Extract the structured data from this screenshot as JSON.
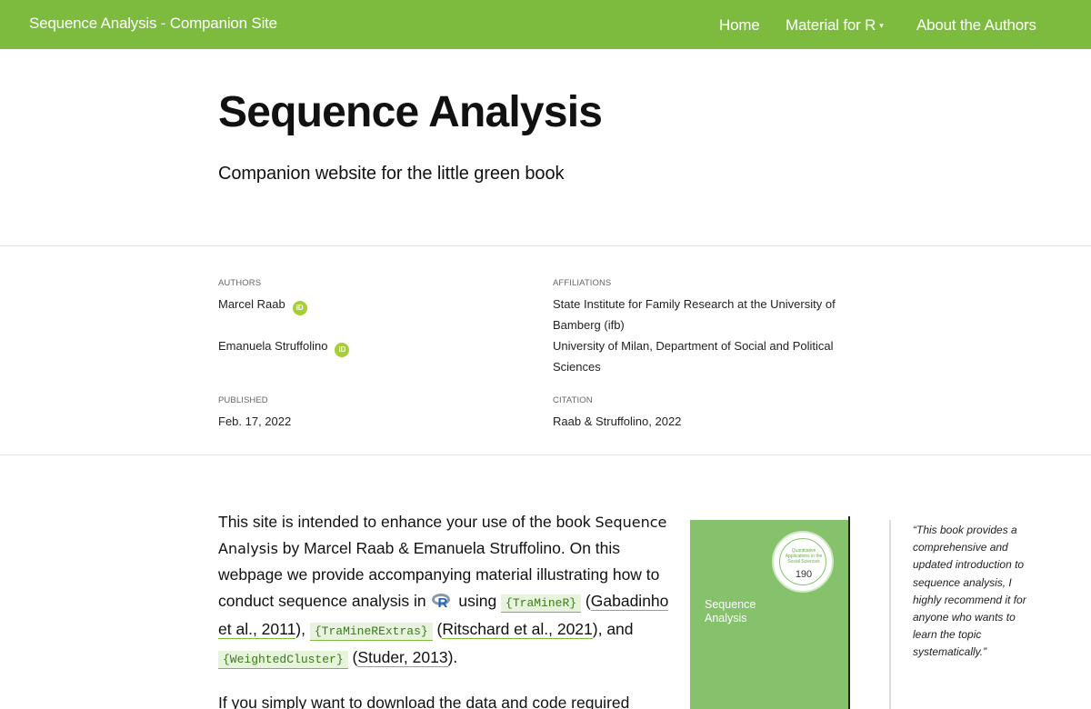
{
  "nav": {
    "brand": "Sequence Analysis - Companion Site",
    "links": [
      {
        "label": "Home"
      },
      {
        "label": "Material for R",
        "caret": "▾"
      },
      {
        "label": "About the Authors"
      }
    ]
  },
  "header": {
    "title": "Sequence Analysis",
    "subtitle": "Companion website for the little green book"
  },
  "meta": {
    "authors_label": "AUTHORS",
    "authors": [
      {
        "name": "Marcel Raab",
        "orcid": "iD"
      },
      {
        "name": "Emanuela Struffolino",
        "orcid": "iD"
      }
    ],
    "affiliations_label": "AFFILIATIONS",
    "affiliations": [
      "State Institute for Family Research at the University of Bamberg (ifb)",
      "University of Milan, Department of Social and Political Sciences"
    ],
    "published_label": "PUBLISHED",
    "published": "Feb. 17, 2022",
    "citation_label": "CITATION",
    "citation": "Raab & Struffolino, 2022"
  },
  "body": {
    "p1_a": "This site is intended to enhance your use of the book ",
    "p1_book": "Sequence Analysis",
    "p1_b": " by Marcel Raab & Emanuela Struffolino. On this webpage we provide accompanying material illustrating how to conduct sequence analysis in ",
    "r_letter": "R",
    "p1_c": " using ",
    "pkg1": "{TraMineR}",
    "cite1": "Gabadinho et al., 2011",
    "pkg2": "{TraMineRExtras}",
    "cite2": "Ritschard et al., 2021",
    "p1_and": "), and ",
    "pkg3": "{WeightedCluster}",
    "cite3": "Studer, 2013",
    "p2": "If you simply want to download the data and code required"
  },
  "cover": {
    "badge_text": "Quantitative Applications in the Social Sciences",
    "badge_number": "190",
    "title": "Sequence Analysis"
  },
  "quote": {
    "text": "“This book provides a comprehensive and updated introduction to sequence analysis, I highly recommend it for anyone who wants to learn the topic systematically.”"
  },
  "colors": {
    "brand_green": "#7dbb3e",
    "orcid_green": "#a6ce39",
    "cover_green": "#85c26b"
  }
}
